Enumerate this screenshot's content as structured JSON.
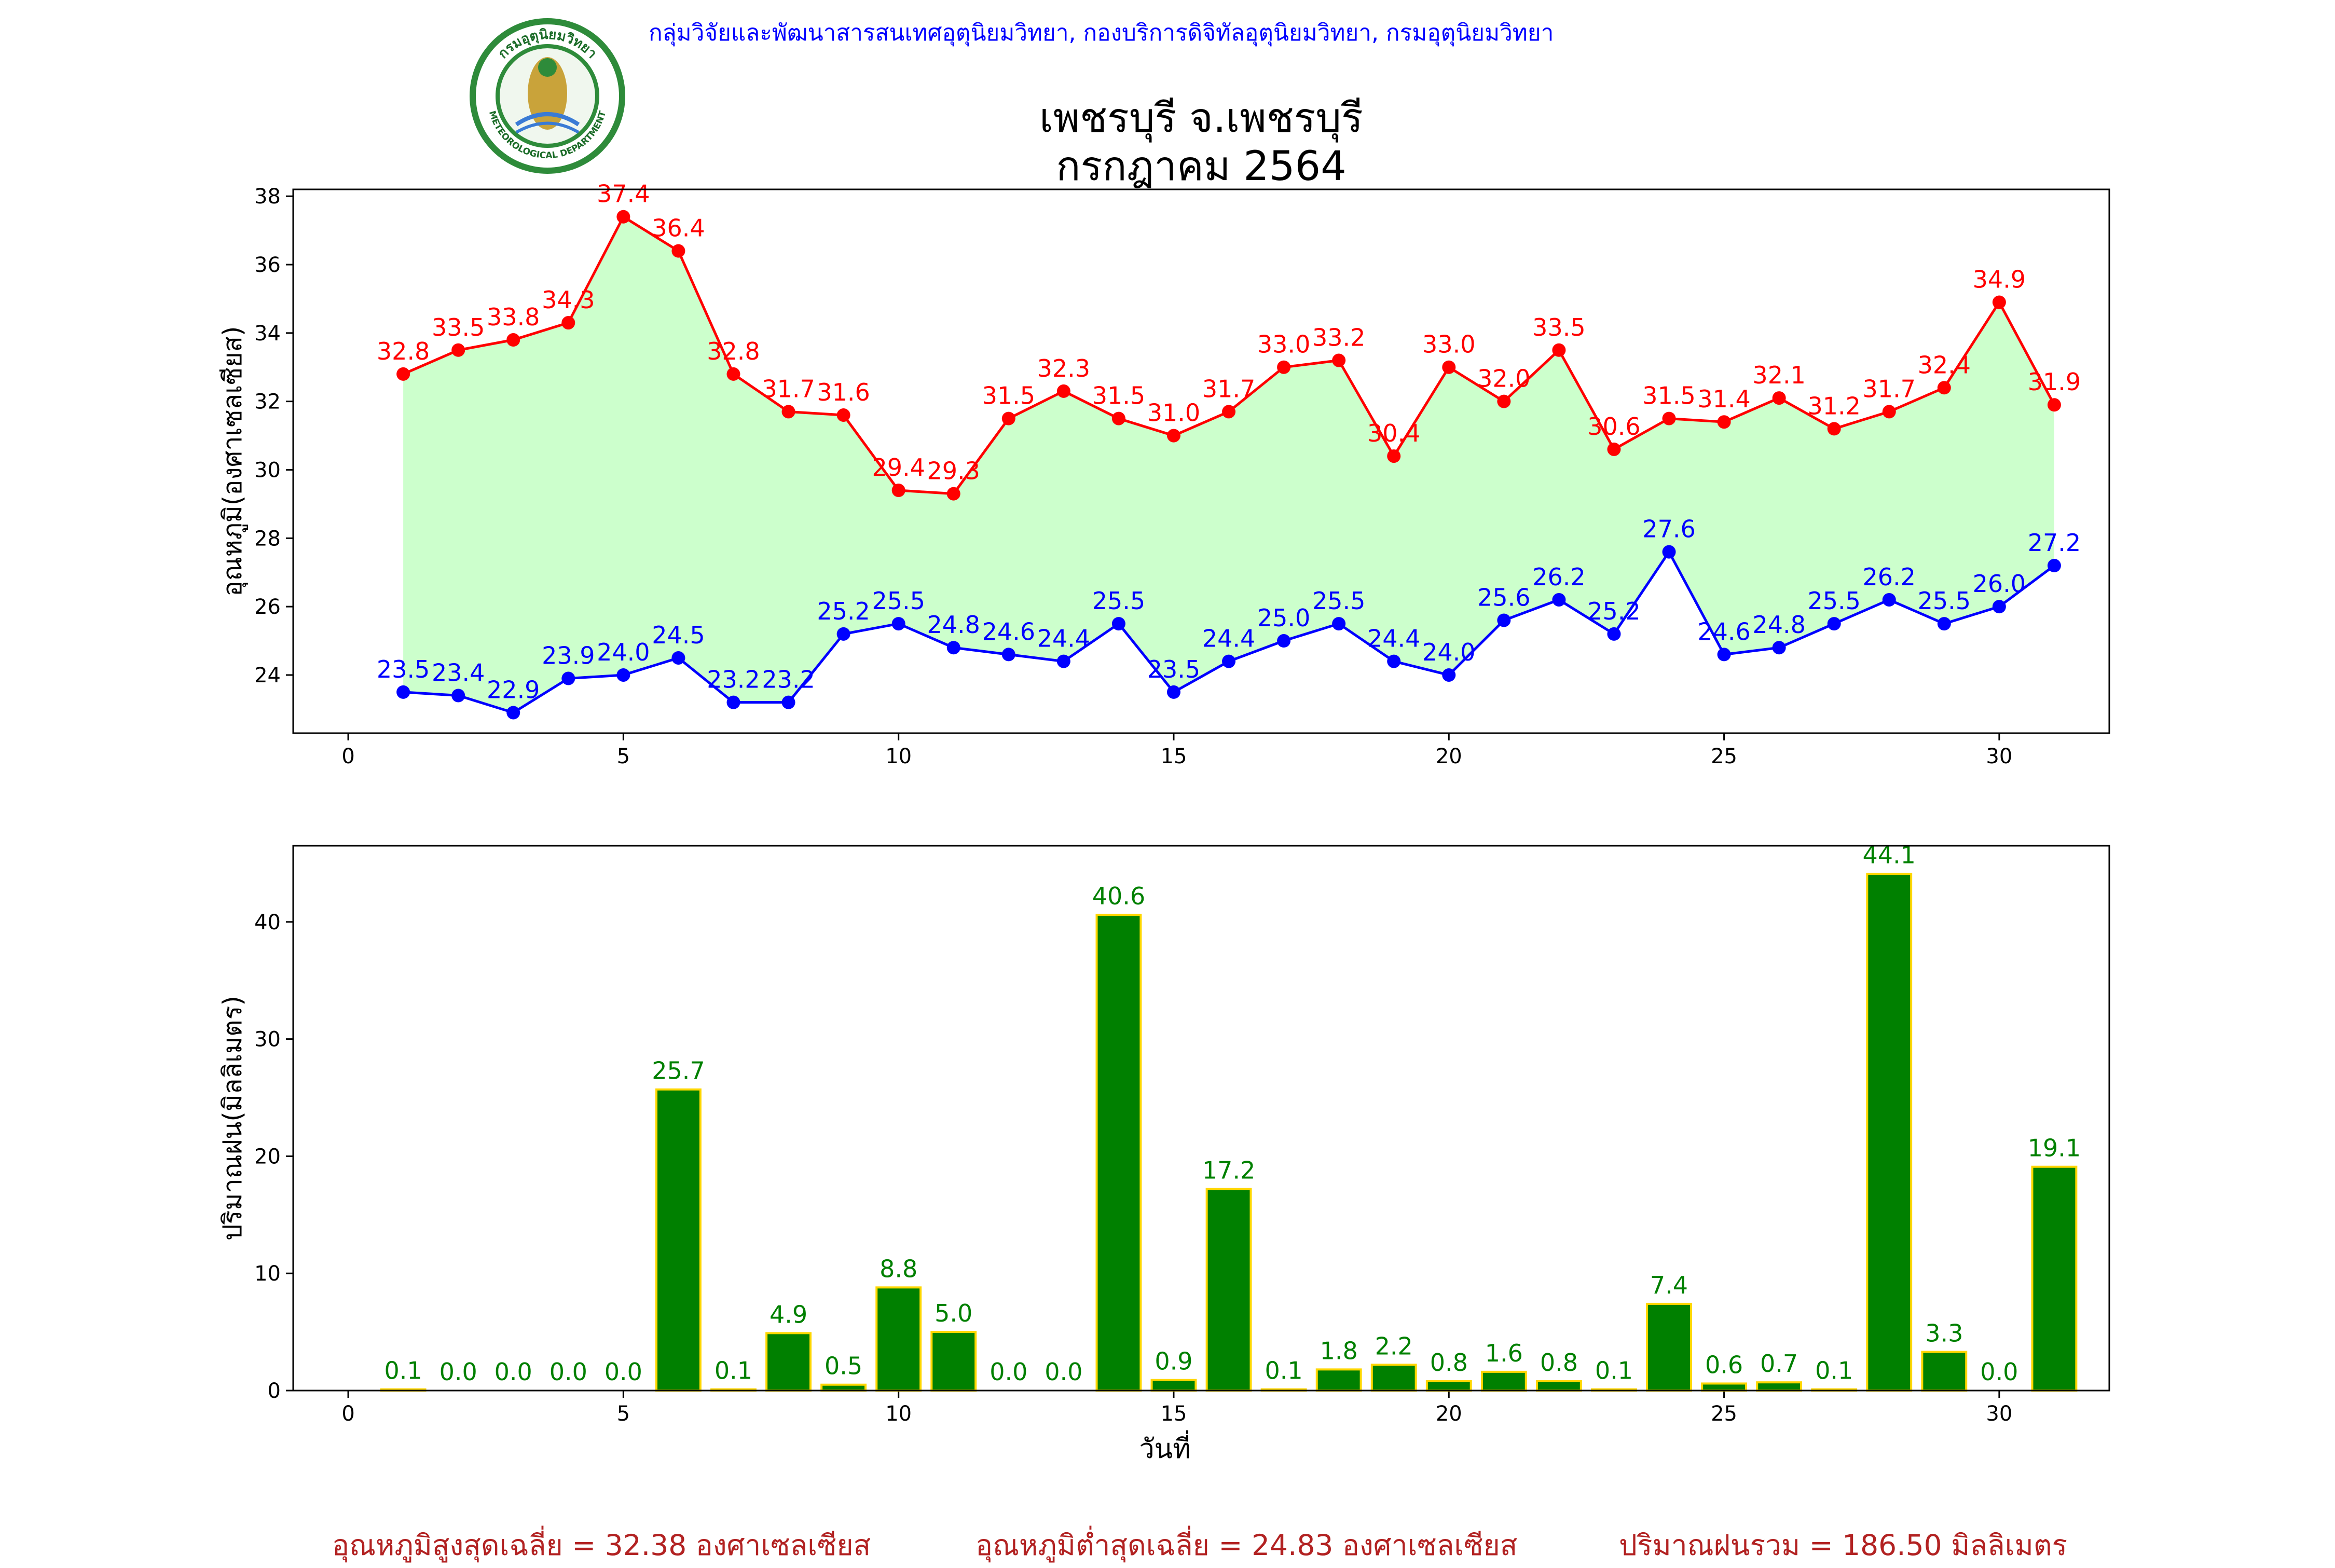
{
  "header": {
    "organization": "กลุ่มวิจัยและพัฒนาสารสนเทศอุตุนิยมวิทยา, กองบริการดิจิทัลอุตุนิยมวิทยา, กรมอุตุนิยมวิทยา",
    "title_line1": "เพชรบุรี จ.เพชรบุรี",
    "title_line2": "กรกฎาคม 2564",
    "logo_top_text": "กรมอุตุนิยมวิทยา",
    "logo_bottom_text": "METEOROLOGICAL DEPARTMENT"
  },
  "colors": {
    "max_temp": "#ff0000",
    "min_temp": "#0000ff",
    "temp_fill": "#ccffcc",
    "rain_bar": "#008000",
    "rain_edge": "#ffd700",
    "footer_text": "#b22222",
    "header_text": "#0000ff"
  },
  "chart_data": [
    {
      "type": "line",
      "ylabel": "อุณหภูมิ(องศาเซลเซียส)",
      "xlabel": "",
      "xlim": [
        -1,
        32
      ],
      "ylim": [
        22.3,
        38.2
      ],
      "xticks": [
        0,
        5,
        10,
        15,
        20,
        25,
        30
      ],
      "yticks": [
        24,
        26,
        28,
        30,
        32,
        34,
        36,
        38
      ],
      "grid": false,
      "fill_between": true,
      "x": [
        1,
        2,
        3,
        4,
        5,
        6,
        7,
        8,
        9,
        10,
        11,
        12,
        13,
        14,
        15,
        16,
        17,
        18,
        19,
        20,
        21,
        22,
        23,
        24,
        25,
        26,
        27,
        28,
        29,
        30,
        31
      ],
      "series": [
        {
          "key": "max",
          "values": [
            32.8,
            33.5,
            33.8,
            34.3,
            37.4,
            36.4,
            32.8,
            31.7,
            31.6,
            29.4,
            29.3,
            31.5,
            32.3,
            31.5,
            31.0,
            31.7,
            33.0,
            33.2,
            30.4,
            33.0,
            32.0,
            33.5,
            30.6,
            31.5,
            31.4,
            32.1,
            31.2,
            31.7,
            32.4,
            34.9,
            31.9
          ]
        },
        {
          "key": "min",
          "values": [
            23.5,
            23.4,
            22.9,
            23.9,
            24.0,
            24.5,
            23.2,
            23.2,
            25.2,
            25.5,
            24.8,
            24.6,
            24.4,
            25.5,
            23.5,
            24.4,
            25.0,
            25.5,
            24.4,
            24.0,
            25.6,
            26.2,
            25.2,
            27.6,
            24.6,
            24.8,
            25.5,
            26.2,
            25.5,
            26.0,
            27.2
          ]
        }
      ]
    },
    {
      "type": "bar",
      "ylabel": "ปริมาณฝน(มิลลิเมตร)",
      "xlabel": "วันที่",
      "xlim": [
        -1,
        32
      ],
      "ylim": [
        0,
        46.5
      ],
      "xticks": [
        0,
        5,
        10,
        15,
        20,
        25,
        30
      ],
      "yticks": [
        0,
        10,
        20,
        30,
        40
      ],
      "grid": false,
      "x": [
        1,
        2,
        3,
        4,
        5,
        6,
        7,
        8,
        9,
        10,
        11,
        12,
        13,
        14,
        15,
        16,
        17,
        18,
        19,
        20,
        21,
        22,
        23,
        24,
        25,
        26,
        27,
        28,
        29,
        30,
        31
      ],
      "values": [
        0.1,
        0.0,
        0.0,
        0.0,
        0.0,
        25.7,
        0.1,
        4.9,
        0.5,
        8.8,
        5.0,
        0.0,
        0.0,
        40.6,
        0.9,
        17.2,
        0.1,
        1.8,
        2.2,
        0.8,
        1.6,
        0.8,
        0.1,
        7.4,
        0.6,
        0.7,
        0.1,
        44.1,
        3.3,
        0.0,
        19.1
      ]
    }
  ],
  "footer": {
    "avg_max": "อุณหภูมิสูงสุดเฉลี่ย = 32.38 องศาเซลเซียส",
    "avg_min": "อุณหภูมิต่ำสุดเฉลี่ย = 24.83 องศาเซลเซียส",
    "total_rain": "ปริมาณฝนรวม = 186.50 มิลลิเมตร"
  }
}
